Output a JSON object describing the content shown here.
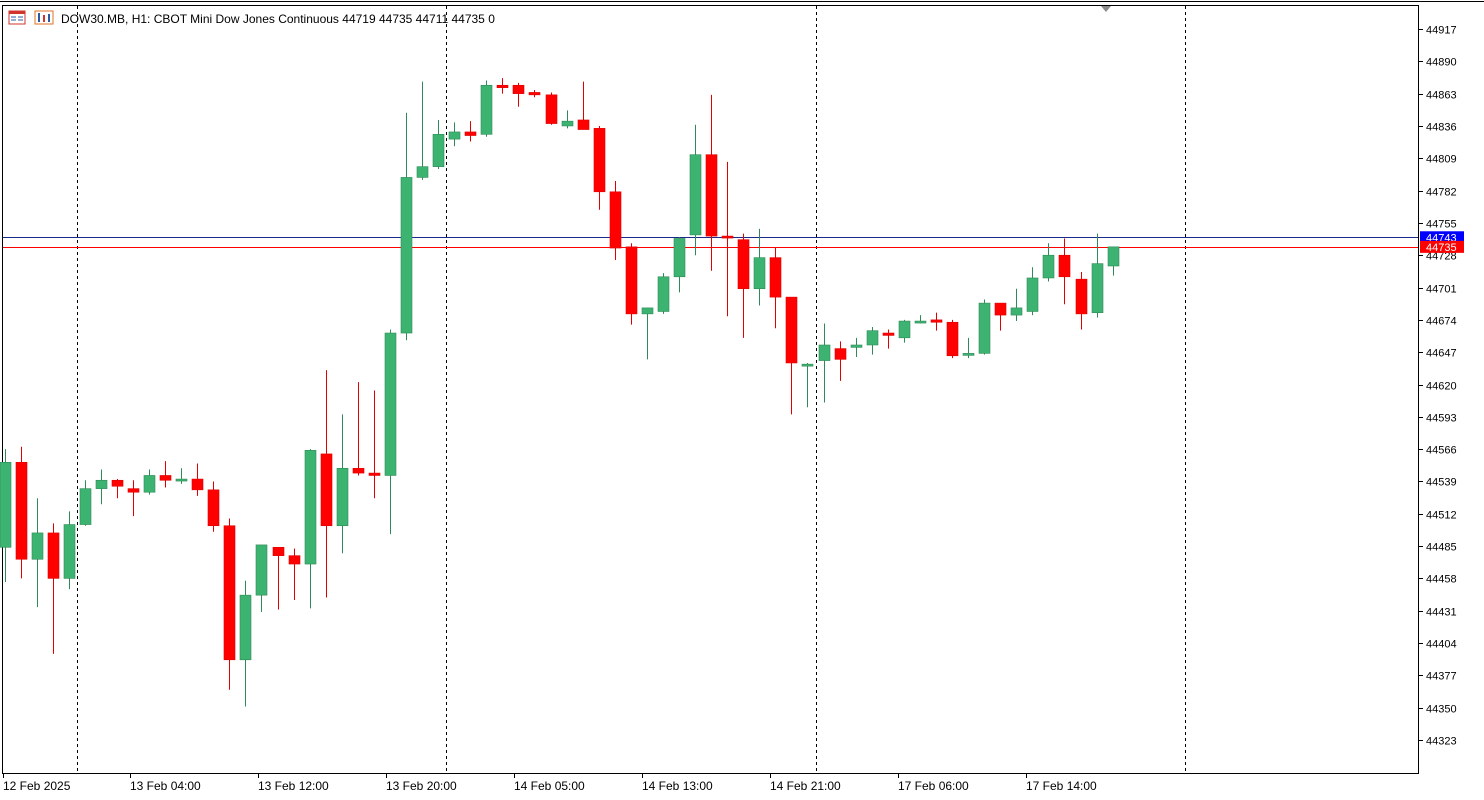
{
  "header": {
    "symbol": "DOW30.MB",
    "timeframe": "H1:",
    "description": "CBOT Mini Dow Jones Continuous",
    "ohlc": "44719 44735 44711 44735",
    "volume": "0",
    "icons": [
      "chart-window-icon",
      "chart-bars-icon"
    ]
  },
  "colors": {
    "bull": "#3CB371",
    "bear": "#FF0000",
    "ask_line": "#1A2A8A",
    "bid_line": "#FF0000",
    "ask_badge": "#0000FF",
    "bid_badge": "#FF0000",
    "current_candle": "#7CFC00"
  },
  "chart_data": {
    "type": "candlestick",
    "title": "DOW30.MB, H1:  CBOT Mini Dow Jones Continuous",
    "y_ticks": [
      44917,
      44890,
      44863,
      44836,
      44809,
      44782,
      44755,
      44728,
      44701,
      44674,
      44647,
      44620,
      44593,
      44566,
      44539,
      44512,
      44485,
      44458,
      44431,
      44404,
      44377,
      44350,
      44323
    ],
    "price_labels": [
      {
        "value": 44743,
        "kind": "ask"
      },
      {
        "value": 44735,
        "kind": "bid"
      }
    ],
    "x_labels": [
      "12 Feb 2025",
      "13 Feb 04:00",
      "13 Feb 12:00",
      "13 Feb 20:00",
      "14 Feb 05:00",
      "14 Feb 13:00",
      "14 Feb 21:00",
      "17 Feb 06:00",
      "17 Feb 14:00"
    ],
    "day_separators_after_bar": [
      4,
      27,
      50,
      73
    ],
    "grid": false,
    "candles": [
      {
        "o": 44484,
        "h": 44566,
        "l": 44455,
        "c": 44555
      },
      {
        "o": 44555,
        "h": 44568,
        "l": 44458,
        "c": 44474
      },
      {
        "o": 44474,
        "h": 44525,
        "l": 44434,
        "c": 44496
      },
      {
        "o": 44496,
        "h": 44504,
        "l": 44395,
        "c": 44458
      },
      {
        "o": 44458,
        "h": 44514,
        "l": 44449,
        "c": 44503
      },
      {
        "o": 44503,
        "h": 44540,
        "l": 44502,
        "c": 44533
      },
      {
        "o": 44533,
        "h": 44549,
        "l": 44520,
        "c": 44540
      },
      {
        "o": 44540,
        "h": 44541,
        "l": 44525,
        "c": 44535
      },
      {
        "o": 44533,
        "h": 44540,
        "l": 44510,
        "c": 44530
      },
      {
        "o": 44530,
        "h": 44549,
        "l": 44528,
        "c": 44544
      },
      {
        "o": 44544,
        "h": 44556,
        "l": 44534,
        "c": 44540
      },
      {
        "o": 44540,
        "h": 44550,
        "l": 44537,
        "c": 44541
      },
      {
        "o": 44541,
        "h": 44554,
        "l": 44527,
        "c": 44532
      },
      {
        "o": 44532,
        "h": 44539,
        "l": 44497,
        "c": 44502
      },
      {
        "o": 44502,
        "h": 44508,
        "l": 44365,
        "c": 44390
      },
      {
        "o": 44390,
        "h": 44456,
        "l": 44351,
        "c": 44444
      },
      {
        "o": 44444,
        "h": 44485,
        "l": 44430,
        "c": 44486
      },
      {
        "o": 44484,
        "h": 44484,
        "l": 44432,
        "c": 44477
      },
      {
        "o": 44477,
        "h": 44483,
        "l": 44440,
        "c": 44470
      },
      {
        "o": 44470,
        "h": 44566,
        "l": 44433,
        "c": 44565
      },
      {
        "o": 44562,
        "h": 44632,
        "l": 44442,
        "c": 44502
      },
      {
        "o": 44502,
        "h": 44595,
        "l": 44479,
        "c": 44550
      },
      {
        "o": 44550,
        "h": 44622,
        "l": 44544,
        "c": 44546
      },
      {
        "o": 44546,
        "h": 44615,
        "l": 44525,
        "c": 44544
      },
      {
        "o": 44544,
        "h": 44666,
        "l": 44495,
        "c": 44663
      },
      {
        "o": 44663,
        "h": 44847,
        "l": 44657,
        "c": 44793
      },
      {
        "o": 44793,
        "h": 44873,
        "l": 44791,
        "c": 44802
      },
      {
        "o": 44802,
        "h": 44841,
        "l": 44800,
        "c": 44829
      },
      {
        "o": 44825,
        "h": 44839,
        "l": 44819,
        "c": 44831
      },
      {
        "o": 44831,
        "h": 44840,
        "l": 44823,
        "c": 44828
      },
      {
        "o": 44829,
        "h": 44874,
        "l": 44827,
        "c": 44870
      },
      {
        "o": 44870,
        "h": 44876,
        "l": 44863,
        "c": 44868
      },
      {
        "o": 44870,
        "h": 44872,
        "l": 44852,
        "c": 44863
      },
      {
        "o": 44864,
        "h": 44866,
        "l": 44860,
        "c": 44862
      },
      {
        "o": 44862,
        "h": 44864,
        "l": 44837,
        "c": 44838
      },
      {
        "o": 44836,
        "h": 44849,
        "l": 44834,
        "c": 44840
      },
      {
        "o": 44841,
        "h": 44873,
        "l": 44834,
        "c": 44833
      },
      {
        "o": 44834,
        "h": 44836,
        "l": 44766,
        "c": 44781
      },
      {
        "o": 44781,
        "h": 44790,
        "l": 44724,
        "c": 44734
      },
      {
        "o": 44735,
        "h": 44738,
        "l": 44670,
        "c": 44679
      },
      {
        "o": 44679,
        "h": 44684,
        "l": 44641,
        "c": 44684
      },
      {
        "o": 44681,
        "h": 44713,
        "l": 44679,
        "c": 44710
      },
      {
        "o": 44710,
        "h": 44743,
        "l": 44697,
        "c": 44742
      },
      {
        "o": 44745,
        "h": 44837,
        "l": 44728,
        "c": 44812
      },
      {
        "o": 44812,
        "h": 44862,
        "l": 44715,
        "c": 44744
      },
      {
        "o": 44744,
        "h": 44806,
        "l": 44677,
        "c": 44743
      },
      {
        "o": 44741,
        "h": 44746,
        "l": 44659,
        "c": 44700
      },
      {
        "o": 44700,
        "h": 44750,
        "l": 44686,
        "c": 44726
      },
      {
        "o": 44726,
        "h": 44734,
        "l": 44667,
        "c": 44693
      },
      {
        "o": 44693,
        "h": 44693,
        "l": 44595,
        "c": 44638
      },
      {
        "o": 44637,
        "h": 44638,
        "l": 44601,
        "c": 44637
      },
      {
        "o": 44640,
        "h": 44671,
        "l": 44605,
        "c": 44653
      },
      {
        "o": 44650,
        "h": 44656,
        "l": 44623,
        "c": 44641
      },
      {
        "o": 44651,
        "h": 44659,
        "l": 44643,
        "c": 44653
      },
      {
        "o": 44653,
        "h": 44668,
        "l": 44645,
        "c": 44665
      },
      {
        "o": 44663,
        "h": 44666,
        "l": 44650,
        "c": 44661
      },
      {
        "o": 44659,
        "h": 44674,
        "l": 44655,
        "c": 44673
      },
      {
        "o": 44673,
        "h": 44678,
        "l": 44671,
        "c": 44673
      },
      {
        "o": 44674,
        "h": 44680,
        "l": 44665,
        "c": 44672
      },
      {
        "o": 44672,
        "h": 44674,
        "l": 44642,
        "c": 44644
      },
      {
        "o": 44645,
        "h": 44659,
        "l": 44642,
        "c": 44646
      },
      {
        "o": 44646,
        "h": 44691,
        "l": 44645,
        "c": 44688
      },
      {
        "o": 44688,
        "h": 44688,
        "l": 44665,
        "c": 44678
      },
      {
        "o": 44678,
        "h": 44700,
        "l": 44673,
        "c": 44684
      },
      {
        "o": 44681,
        "h": 44718,
        "l": 44678,
        "c": 44709
      },
      {
        "o": 44709,
        "h": 44738,
        "l": 44706,
        "c": 44728
      },
      {
        "o": 44728,
        "h": 44742,
        "l": 44687,
        "c": 44710
      },
      {
        "o": 44708,
        "h": 44714,
        "l": 44666,
        "c": 44679
      },
      {
        "o": 44680,
        "h": 44746,
        "l": 44676,
        "c": 44721
      },
      {
        "o": 44719,
        "h": 44735,
        "l": 44711,
        "c": 44735
      }
    ]
  }
}
